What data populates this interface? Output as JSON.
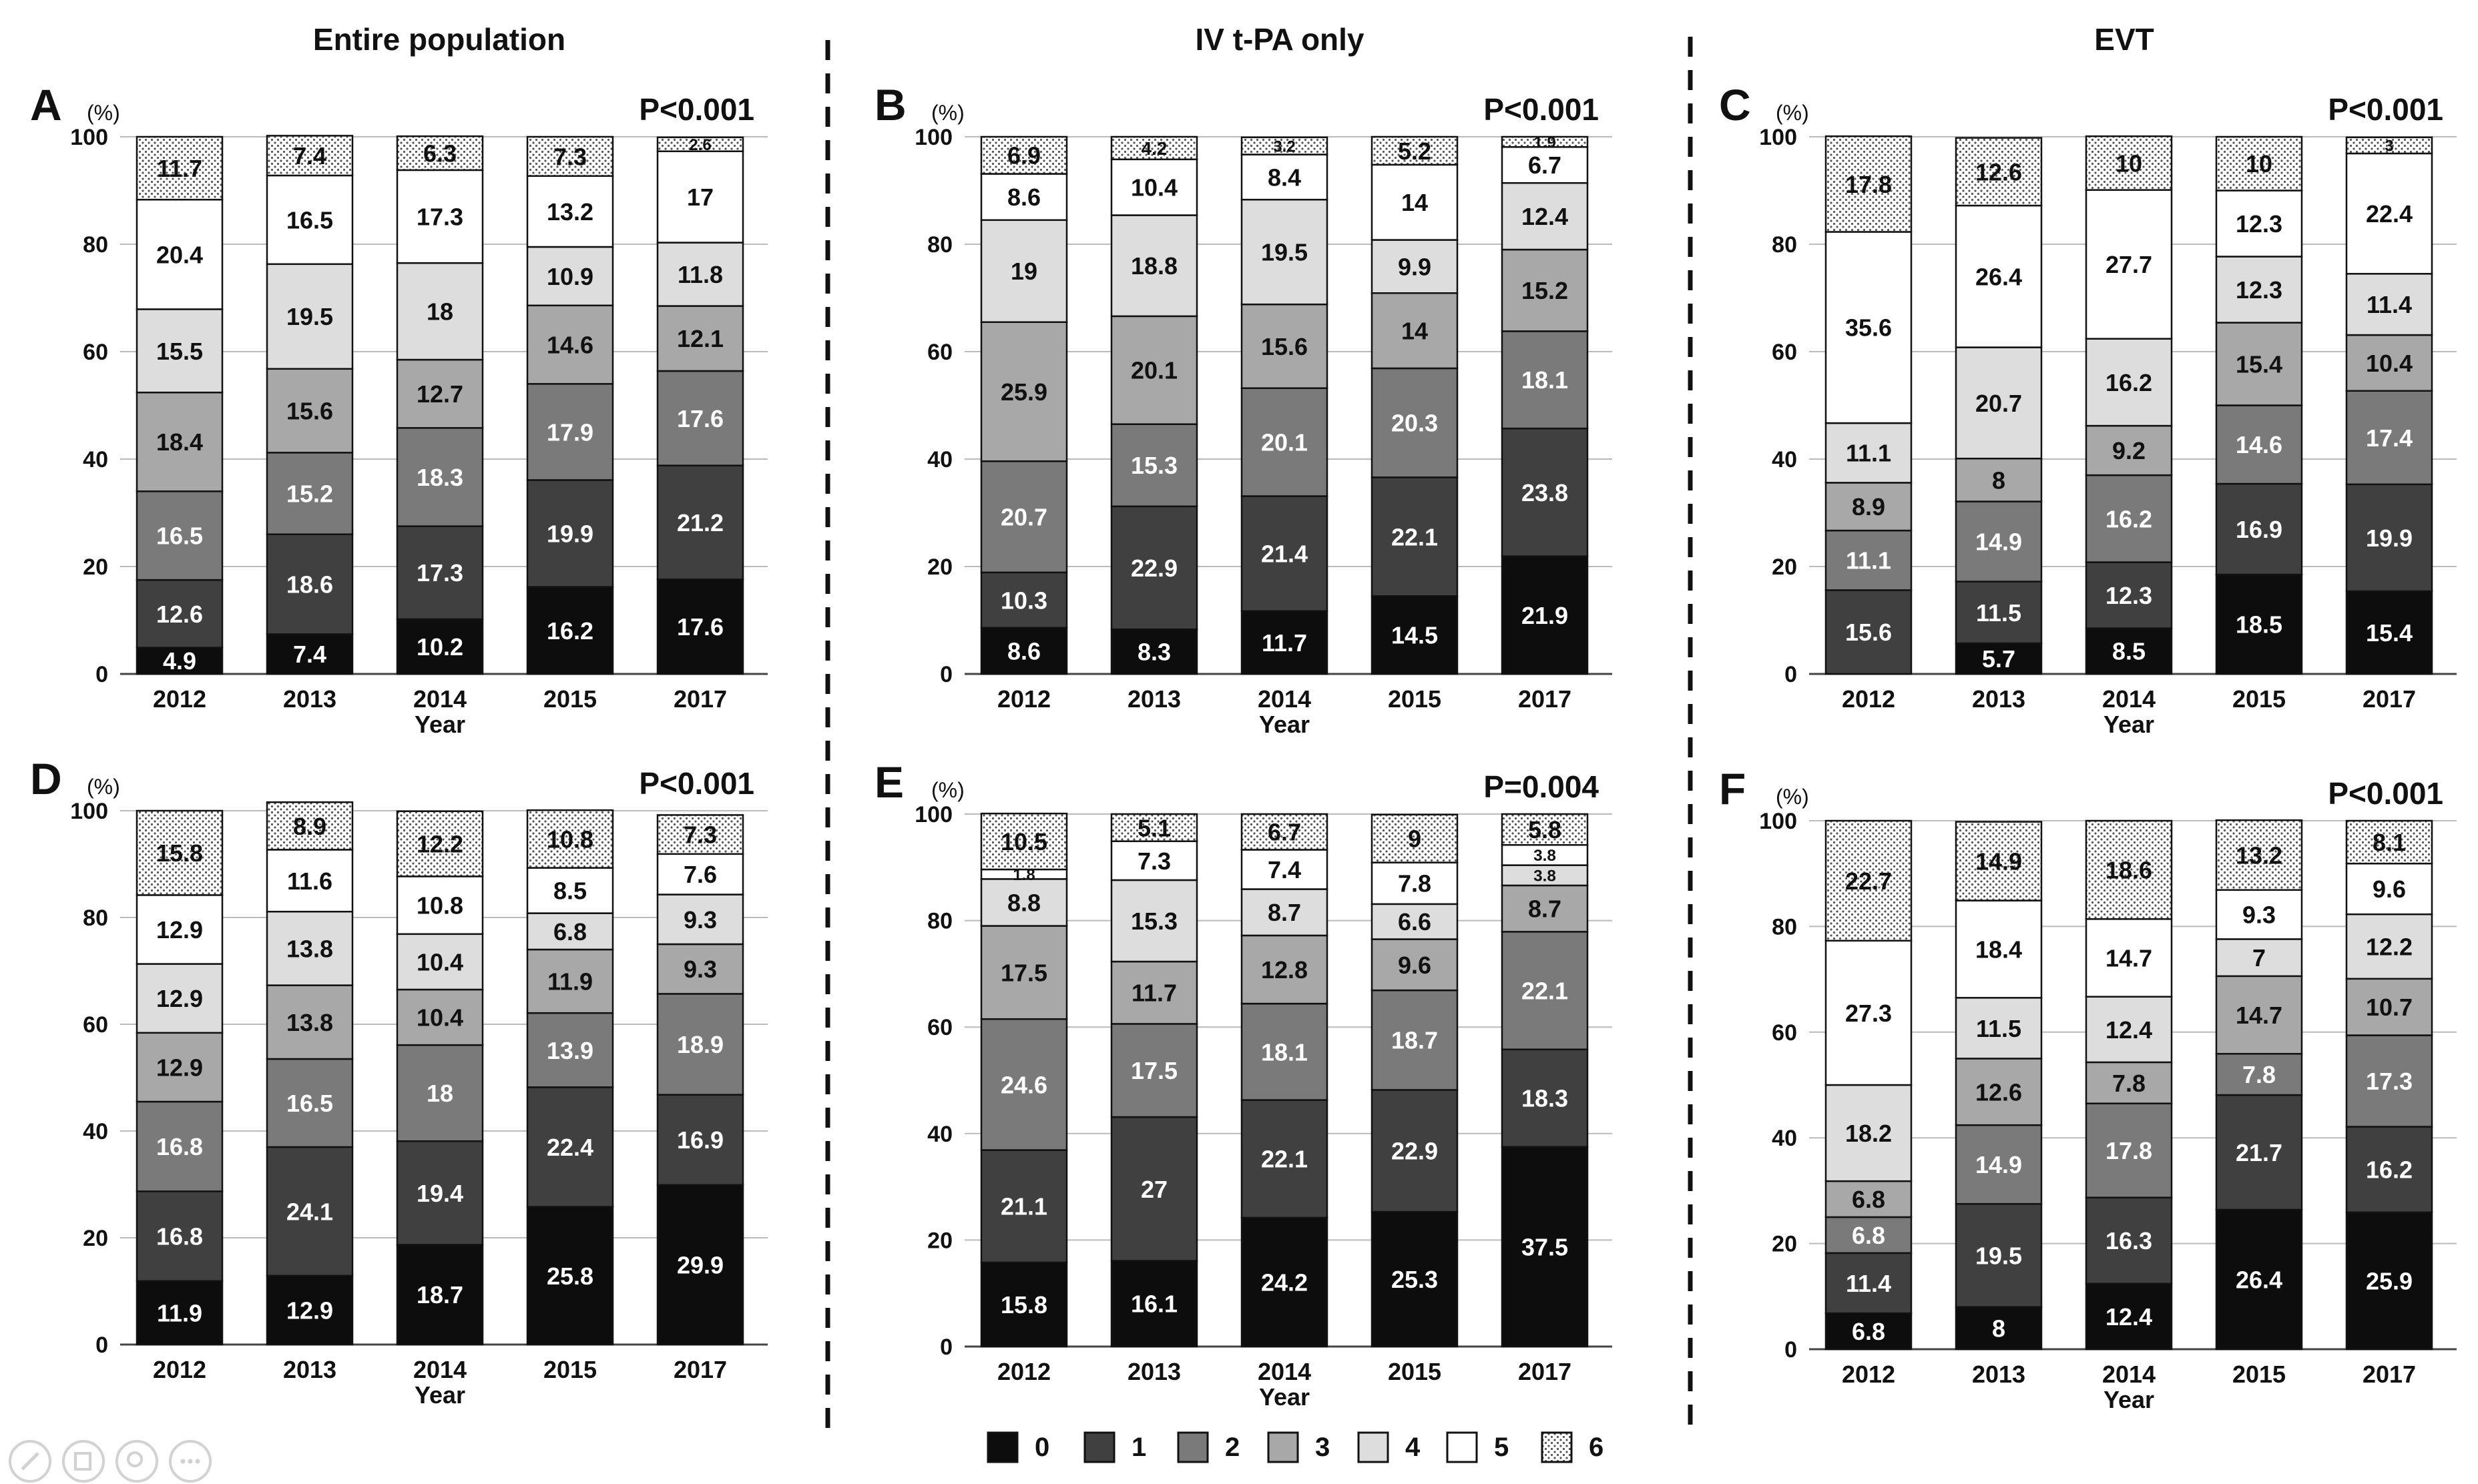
{
  "figure": {
    "columns": [
      {
        "title": "Entire population"
      },
      {
        "title": "IV t-PA only"
      },
      {
        "title": "EVT"
      }
    ],
    "legend": {
      "items": [
        {
          "label": "0",
          "color": "#0d0d0d"
        },
        {
          "label": "1",
          "color": "#404040"
        },
        {
          "label": "2",
          "color": "#7a7a7a"
        },
        {
          "label": "3",
          "color": "#a8a8a8"
        },
        {
          "label": "4",
          "color": "#dddddd"
        },
        {
          "label": "5",
          "color": "#ffffff"
        },
        {
          "label": "6",
          "color": "dotted",
          "pattern": "dotted"
        }
      ]
    },
    "toolbar": [
      "pencil-icon",
      "copy-icon",
      "zoom-icon",
      "more-icon"
    ]
  },
  "chart_data": [
    {
      "type": "bar",
      "stacked": true,
      "panel": "A",
      "pvalue": "P<0.001",
      "ylabel": "(%)",
      "xlabel": "Year",
      "ylim": [
        0,
        100
      ],
      "yticks": [
        "0",
        "20",
        "40",
        "60",
        "80",
        "100"
      ],
      "categories": [
        "2012",
        "2013",
        "2014",
        "2015",
        "2017"
      ],
      "series": [
        {
          "name": "0",
          "values": [
            4.9,
            7.4,
            10.2,
            16.2,
            17.6
          ]
        },
        {
          "name": "1",
          "values": [
            12.6,
            18.6,
            17.3,
            19.9,
            21.2
          ]
        },
        {
          "name": "2",
          "values": [
            16.5,
            15.2,
            18.3,
            17.9,
            17.6
          ]
        },
        {
          "name": "3",
          "values": [
            18.4,
            15.6,
            12.7,
            14.6,
            12.1
          ]
        },
        {
          "name": "4",
          "values": [
            15.5,
            19.5,
            18,
            10.9,
            11.8
          ]
        },
        {
          "name": "5",
          "values": [
            20.4,
            16.5,
            17.3,
            13.2,
            17
          ]
        },
        {
          "name": "6",
          "values": [
            11.7,
            7.4,
            6.3,
            7.3,
            2.6
          ]
        }
      ]
    },
    {
      "type": "bar",
      "stacked": true,
      "panel": "B",
      "pvalue": "P<0.001",
      "ylabel": "(%)",
      "xlabel": "Year",
      "ylim": [
        0,
        100
      ],
      "yticks": [
        "0",
        "20",
        "40",
        "60",
        "80",
        "100"
      ],
      "categories": [
        "2012",
        "2013",
        "2014",
        "2015",
        "2017"
      ],
      "series": [
        {
          "name": "0",
          "values": [
            8.6,
            8.3,
            11.7,
            14.5,
            21.9
          ]
        },
        {
          "name": "1",
          "values": [
            10.3,
            22.9,
            21.4,
            22.1,
            23.8
          ]
        },
        {
          "name": "2",
          "values": [
            20.7,
            15.3,
            20.1,
            20.3,
            18.1
          ]
        },
        {
          "name": "3",
          "values": [
            25.9,
            20.1,
            15.6,
            14,
            15.2
          ]
        },
        {
          "name": "4",
          "values": [
            19,
            18.8,
            19.5,
            9.9,
            12.4
          ]
        },
        {
          "name": "5",
          "values": [
            8.6,
            10.4,
            8.4,
            14,
            6.7
          ]
        },
        {
          "name": "6",
          "values": [
            6.9,
            4.2,
            3.2,
            5.2,
            1.9
          ]
        }
      ]
    },
    {
      "type": "bar",
      "stacked": true,
      "panel": "C",
      "pvalue": "P<0.001",
      "ylabel": "(%)",
      "xlabel": "Year",
      "ylim": [
        0,
        100
      ],
      "yticks": [
        "0",
        "20",
        "40",
        "60",
        "80",
        "100"
      ],
      "categories": [
        "2012",
        "2013",
        "2014",
        "2015",
        "2017"
      ],
      "series": [
        {
          "name": "0",
          "values": [
            0,
            5.7,
            8.5,
            18.5,
            15.4
          ]
        },
        {
          "name": "1",
          "values": [
            15.6,
            11.5,
            12.3,
            16.9,
            19.9
          ]
        },
        {
          "name": "2",
          "values": [
            11.1,
            14.9,
            16.2,
            14.6,
            17.4
          ]
        },
        {
          "name": "3",
          "values": [
            8.9,
            8,
            9.2,
            15.4,
            10.4
          ]
        },
        {
          "name": "4",
          "values": [
            11.1,
            20.7,
            16.2,
            12.3,
            11.4
          ]
        },
        {
          "name": "5",
          "values": [
            35.6,
            26.4,
            27.7,
            12.3,
            22.4
          ]
        },
        {
          "name": "6",
          "values": [
            17.8,
            12.6,
            10,
            10,
            3
          ]
        }
      ]
    },
    {
      "type": "bar",
      "stacked": true,
      "panel": "D",
      "pvalue": "P<0.001",
      "ylabel": "(%)",
      "xlabel": "Year",
      "ylim": [
        0,
        100
      ],
      "yticks": [
        "0",
        "20",
        "40",
        "60",
        "80",
        "100"
      ],
      "categories": [
        "2012",
        "2013",
        "2014",
        "2015",
        "2017"
      ],
      "series": [
        {
          "name": "0",
          "values": [
            11.9,
            12.9,
            18.7,
            25.8,
            29.9
          ]
        },
        {
          "name": "1",
          "values": [
            16.8,
            24.1,
            19.4,
            22.4,
            16.9
          ]
        },
        {
          "name": "2",
          "values": [
            16.8,
            16.5,
            18,
            13.9,
            18.9
          ]
        },
        {
          "name": "3",
          "values": [
            12.9,
            13.8,
            10.4,
            11.9,
            9.3
          ]
        },
        {
          "name": "4",
          "values": [
            12.9,
            13.8,
            10.4,
            6.8,
            9.3
          ]
        },
        {
          "name": "5",
          "values": [
            12.9,
            11.6,
            10.8,
            8.5,
            7.6
          ]
        },
        {
          "name": "6",
          "values": [
            15.8,
            8.9,
            12.2,
            10.8,
            7.3
          ]
        }
      ]
    },
    {
      "type": "bar",
      "stacked": true,
      "panel": "E",
      "pvalue": "P=0.004",
      "ylabel": "(%)",
      "xlabel": "Year",
      "ylim": [
        0,
        100
      ],
      "yticks": [
        "0",
        "20",
        "40",
        "60",
        "80",
        "100"
      ],
      "categories": [
        "2012",
        "2013",
        "2014",
        "2015",
        "2017"
      ],
      "series": [
        {
          "name": "0",
          "values": [
            15.8,
            16.1,
            24.2,
            25.3,
            37.5
          ]
        },
        {
          "name": "1",
          "values": [
            21.1,
            27,
            22.1,
            22.9,
            18.3
          ]
        },
        {
          "name": "2",
          "values": [
            24.6,
            17.5,
            18.1,
            18.7,
            22.1
          ]
        },
        {
          "name": "3",
          "values": [
            17.5,
            11.7,
            12.8,
            9.6,
            8.7
          ]
        },
        {
          "name": "4",
          "values": [
            8.8,
            15.3,
            8.7,
            6.6,
            3.8
          ]
        },
        {
          "name": "5",
          "values": [
            1.8,
            7.3,
            7.4,
            7.8,
            3.8
          ]
        },
        {
          "name": "6",
          "values": [
            10.5,
            5.1,
            6.7,
            9,
            5.8
          ]
        }
      ]
    },
    {
      "type": "bar",
      "stacked": true,
      "panel": "F",
      "pvalue": "P<0.001",
      "ylabel": "(%)",
      "xlabel": "Year",
      "ylim": [
        0,
        100
      ],
      "yticks": [
        "0",
        "20",
        "40",
        "60",
        "80",
        "100"
      ],
      "categories": [
        "2012",
        "2013",
        "2014",
        "2015",
        "2017"
      ],
      "series": [
        {
          "name": "0",
          "values": [
            6.8,
            8,
            12.4,
            26.4,
            25.9
          ]
        },
        {
          "name": "1",
          "values": [
            11.4,
            19.5,
            16.3,
            21.7,
            16.2
          ]
        },
        {
          "name": "2",
          "values": [
            6.8,
            14.9,
            17.8,
            7.8,
            17.3
          ]
        },
        {
          "name": "3",
          "values": [
            6.8,
            12.6,
            7.8,
            14.7,
            10.7
          ]
        },
        {
          "name": "4",
          "values": [
            18.2,
            11.5,
            12.4,
            7,
            12.2
          ]
        },
        {
          "name": "5",
          "values": [
            27.3,
            18.4,
            14.7,
            9.3,
            9.6
          ]
        },
        {
          "name": "6",
          "values": [
            22.7,
            14.9,
            18.6,
            13.2,
            8.1
          ]
        }
      ]
    }
  ]
}
